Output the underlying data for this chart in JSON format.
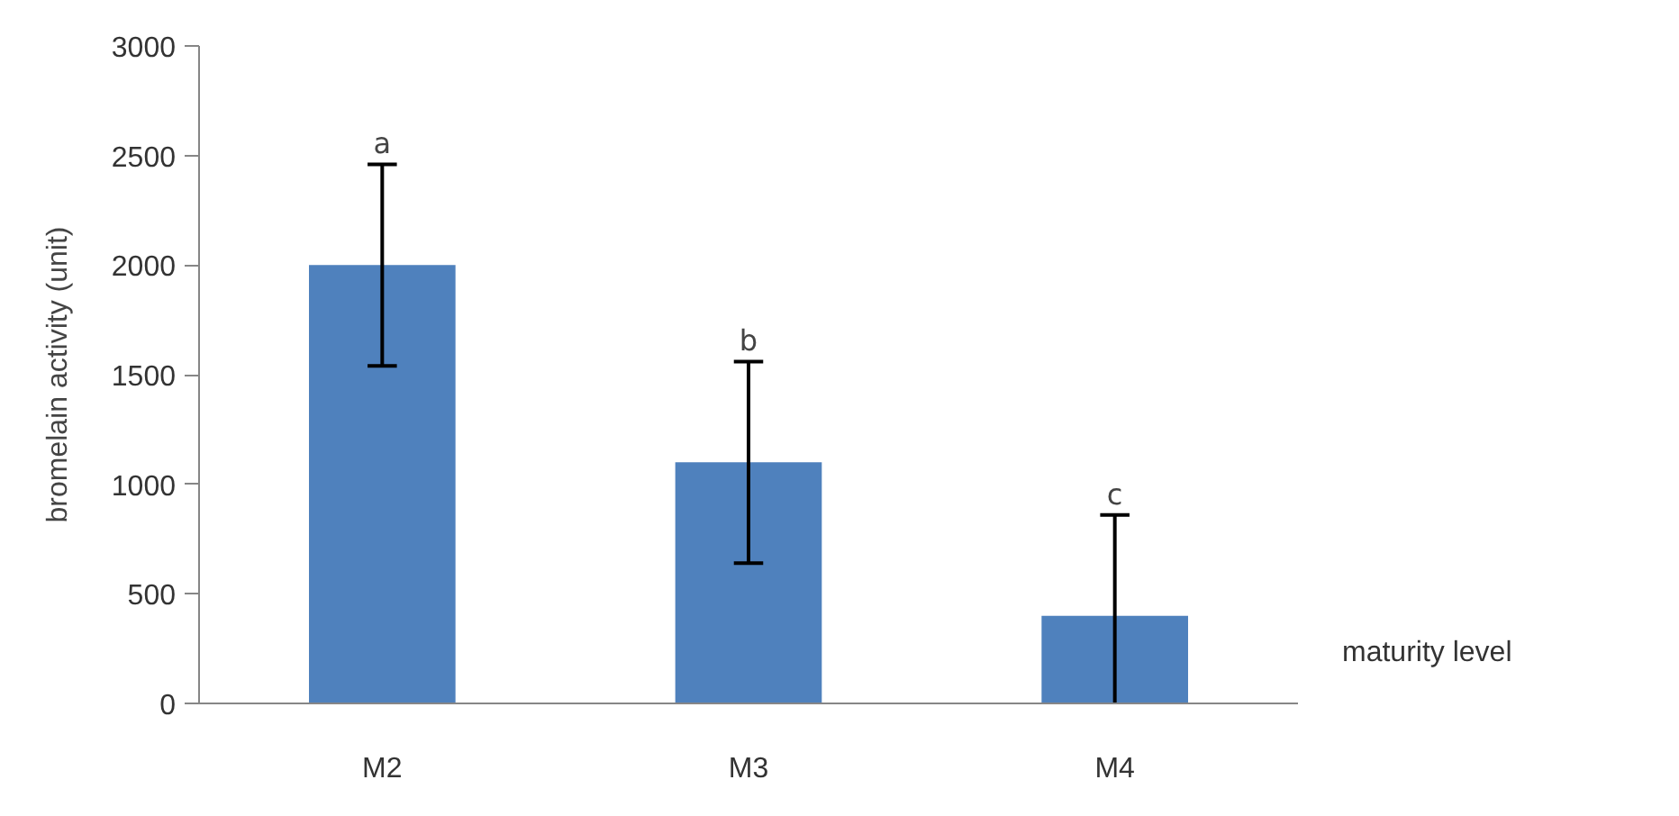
{
  "chart_data": {
    "type": "bar",
    "ylabel": "bromelain activity (unit)",
    "xlabel": "maturity level",
    "categories": [
      "M2",
      "M3",
      "M4"
    ],
    "values": [
      2000,
      1100,
      400
    ],
    "errors": [
      460,
      460,
      [
        0,
        860
      ]
    ],
    "color": "#4f81bd",
    "ylim": [
      0,
      3000
    ],
    "yticks": [
      0,
      500,
      1000,
      1500,
      2000,
      2500,
      3000
    ],
    "grid": false,
    "annotations": [
      {
        "text": "a",
        "x": "M2",
        "y": 2460
      },
      {
        "text": "b",
        "x": "M3",
        "y": 1560
      },
      {
        "text": "c",
        "x": "M4",
        "y": 860
      }
    ]
  }
}
